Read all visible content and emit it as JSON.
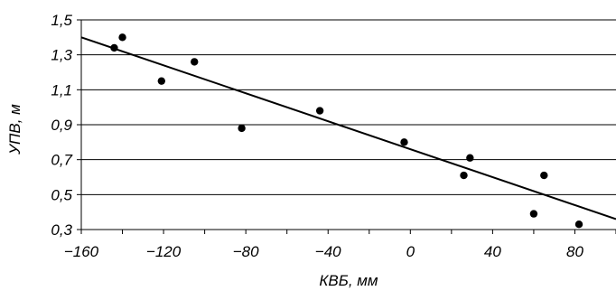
{
  "chart_data": {
    "type": "scatter",
    "title": "",
    "xlabel": "КВБ, мм",
    "ylabel": "УПВ, м",
    "xlim": [
      -160,
      100
    ],
    "ylim": [
      0.3,
      1.5
    ],
    "grid": "horizontal",
    "x_ticks": [
      -160,
      -120,
      -80,
      -40,
      0,
      40,
      80
    ],
    "x_tick_labels": [
      "−160",
      "−120",
      "−80",
      "−40",
      "0",
      "40",
      "80"
    ],
    "y_ticks": [
      0.3,
      0.5,
      0.7,
      0.9,
      1.1,
      1.3,
      1.5
    ],
    "y_tick_labels": [
      "0,3",
      "0,5",
      "0,7",
      "0,9",
      "1,1",
      "1,3",
      "1,5"
    ],
    "points": [
      {
        "x": -144,
        "y": 1.34
      },
      {
        "x": -140,
        "y": 1.4
      },
      {
        "x": -121,
        "y": 1.15
      },
      {
        "x": -105,
        "y": 1.26
      },
      {
        "x": -82,
        "y": 0.88
      },
      {
        "x": -44,
        "y": 0.98
      },
      {
        "x": -3,
        "y": 0.8
      },
      {
        "x": 26,
        "y": 0.61
      },
      {
        "x": 29,
        "y": 0.71
      },
      {
        "x": 60,
        "y": 0.39
      },
      {
        "x": 65,
        "y": 0.61
      },
      {
        "x": 82,
        "y": 0.33
      }
    ],
    "trendline": {
      "x": [
        -160,
        100
      ],
      "y": [
        1.4,
        0.36
      ]
    },
    "colors": {
      "points": "#000000",
      "trendline": "#000000",
      "grid": "#000000"
    }
  }
}
